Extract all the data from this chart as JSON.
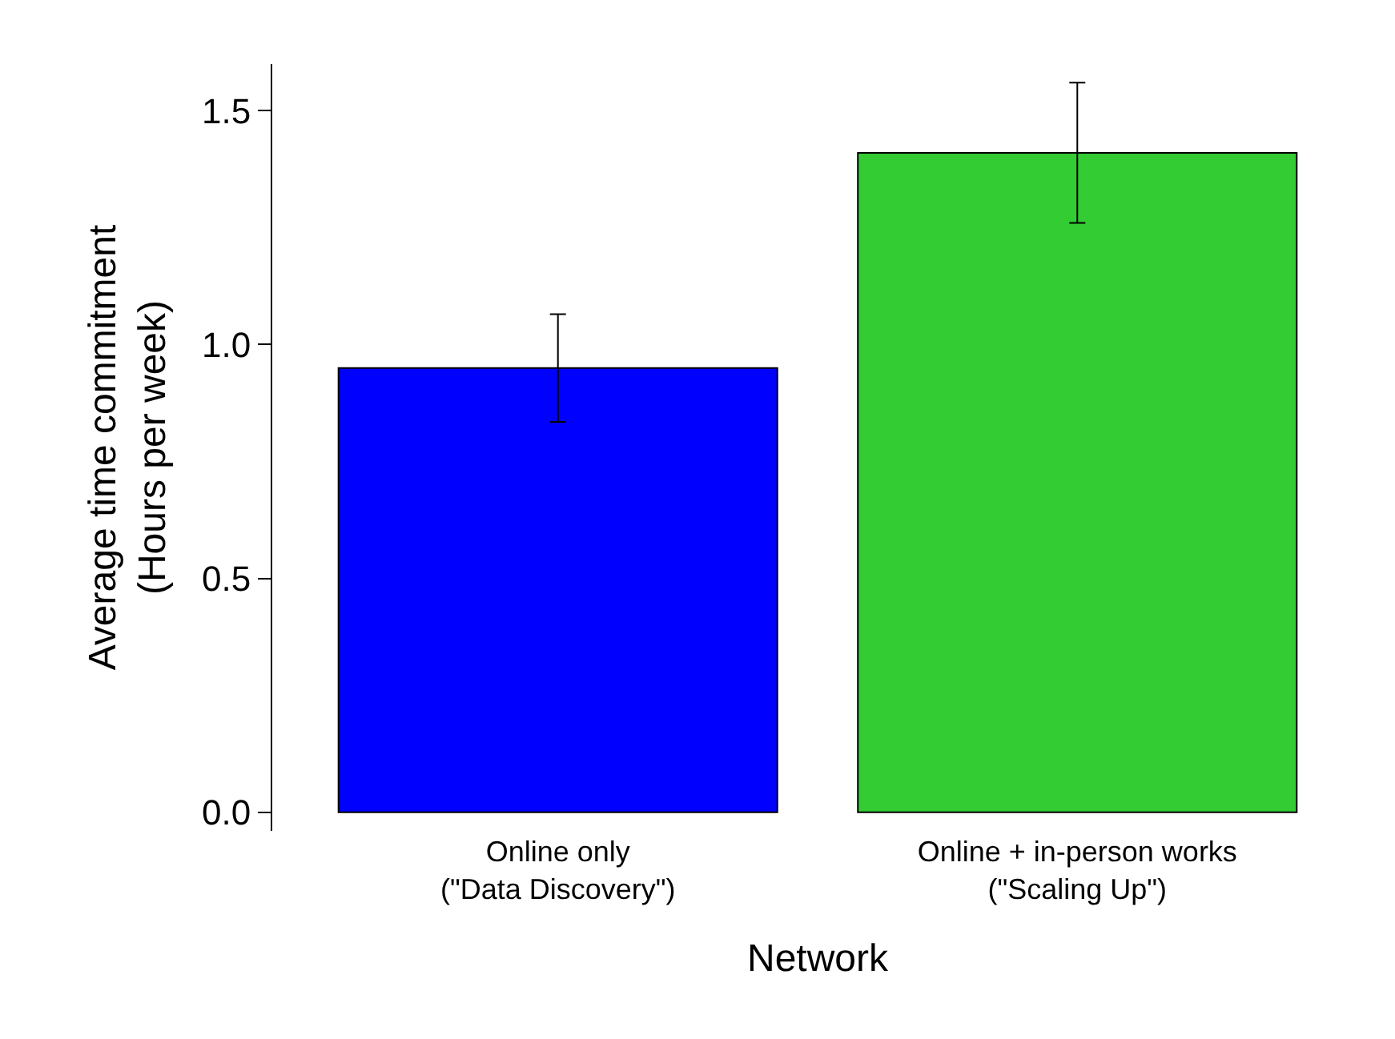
{
  "chart_data": {
    "type": "bar",
    "categories": [
      "Online only\n(\"Data Discovery\")",
      "Online + in-person works\n(\"Scaling Up\")"
    ],
    "values": [
      0.95,
      1.41
    ],
    "errors": [
      0.115,
      0.15
    ],
    "colors": [
      "#0000ff",
      "#33cc33"
    ],
    "xlabel": "Network",
    "ylabel": "Average time commitment\n(Hours per week)",
    "ylim": [
      -0.04,
      1.6
    ],
    "yticks": [
      {
        "value": 0,
        "label": "0.0"
      },
      {
        "value": 0.5,
        "label": "0.5"
      },
      {
        "value": 1,
        "label": "1.0"
      },
      {
        "value": 1.5,
        "label": "1.5"
      }
    ]
  }
}
